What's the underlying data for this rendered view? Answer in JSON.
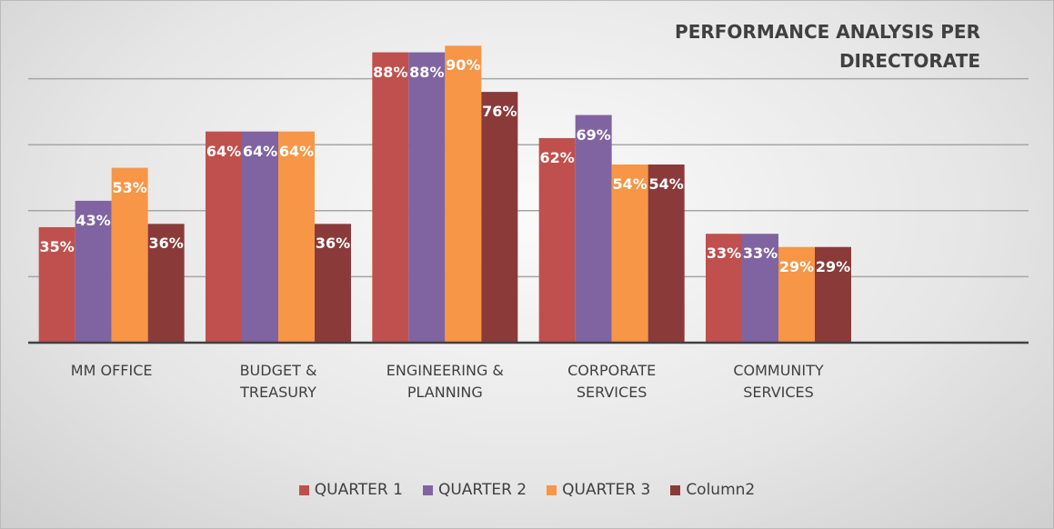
{
  "chart_data": {
    "type": "bar",
    "title": "PERFORMANCE  ANALYSIS PER DIRECTORATE",
    "categories": [
      "MM OFFICE",
      "BUDGET & TREASURY",
      "ENGINEERING & PLANNING",
      "CORPORATE SERVICES",
      "COMMUNITY SERVICES",
      null
    ],
    "series": [
      {
        "name": "QUARTER 1",
        "color": "#c0504d",
        "values": [
          35,
          64,
          88,
          62,
          33,
          null
        ],
        "value_labels": [
          "35%",
          "64%",
          "88%",
          "62%",
          "33%",
          null
        ]
      },
      {
        "name": "QUARTER 2",
        "color": "#8064a2",
        "values": [
          43,
          64,
          88,
          69,
          33,
          null
        ],
        "value_labels": [
          "43%",
          "64%",
          "88%",
          "69%",
          "33%",
          null
        ]
      },
      {
        "name": "QUARTER 3",
        "color": "#f79646",
        "values": [
          53,
          64,
          90,
          54,
          29,
          null
        ],
        "value_labels": [
          "53%",
          "64%",
          "90%",
          "54%",
          "29%",
          null
        ]
      },
      {
        "name": "Column2",
        "color": "#8b3a3a",
        "values": [
          36,
          36,
          76,
          54,
          29,
          null
        ],
        "value_labels": [
          "36%",
          "36%",
          "76%",
          "54%",
          "29%",
          null
        ]
      }
    ],
    "ylim": [
      0,
      100
    ],
    "yticks": [
      0,
      20,
      40,
      60,
      80
    ],
    "grid": true,
    "legend": "bottom"
  }
}
